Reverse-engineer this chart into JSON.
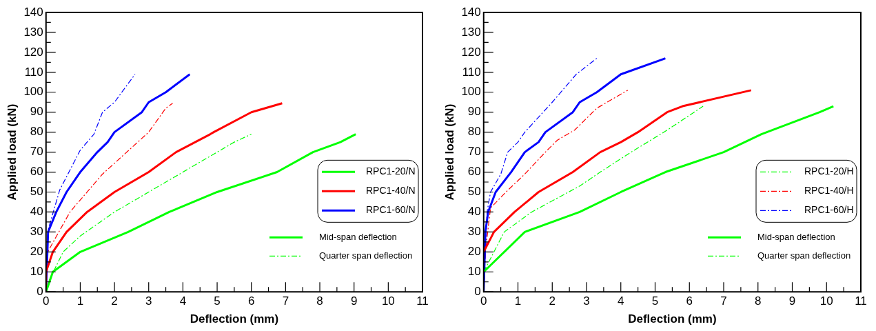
{
  "chart_data": [
    {
      "type": "line",
      "xlabel": "Deflection (mm)",
      "ylabel": "Applied load (kN)",
      "xlim": [
        0,
        11
      ],
      "xticks": [
        0,
        1,
        2,
        3,
        4,
        5,
        6,
        7,
        8,
        9,
        10,
        11
      ],
      "ylim": [
        0,
        140
      ],
      "yticks": [
        0,
        10,
        20,
        30,
        40,
        50,
        60,
        70,
        80,
        90,
        100,
        110,
        120,
        130,
        140
      ],
      "legend": "right",
      "annotations": [
        "Mid-span deflection",
        "Quarter span deflection"
      ],
      "series": [
        {
          "name": "RPC1-20/N",
          "color": "#00ff00",
          "line_style": "solid",
          "x": [
            0,
            0.2,
            1,
            2.4,
            3.6,
            5,
            6.75,
            7.8,
            8.6,
            9.05
          ],
          "values": [
            0,
            10,
            20,
            30,
            40,
            50,
            60,
            70,
            75,
            79
          ]
        },
        {
          "name": "RPC1-40/N",
          "color": "#ff0000",
          "line_style": "solid",
          "x": [
            0,
            0,
            0.2,
            0.6,
            1.2,
            2,
            3,
            3.8,
            4.8,
            4.9,
            6,
            6.9
          ],
          "values": [
            0,
            10,
            20,
            30,
            40,
            50,
            60,
            70,
            79,
            80,
            90,
            94.5
          ]
        },
        {
          "name": "RPC1-60/N",
          "color": "#0000ff",
          "line_style": "solid",
          "x": [
            0,
            0.06,
            0.3,
            0.6,
            1,
            1.5,
            1.8,
            2,
            2.8,
            3,
            3.5,
            4.2
          ],
          "values": [
            0,
            30,
            40,
            50,
            60,
            70,
            75,
            80,
            90,
            95,
            100,
            109
          ]
        },
        {
          "color": "#00ff00",
          "line_style": "dashed",
          "x": [
            0,
            0.1,
            0.5,
            1,
            2,
            3,
            4,
            5,
            5.5,
            6
          ],
          "values": [
            0,
            6,
            20,
            28,
            40,
            50,
            60,
            70,
            75,
            79
          ]
        },
        {
          "color": "#ff0000",
          "line_style": "dashed",
          "x": [
            0,
            0.05,
            0.7,
            1.65,
            3,
            3.5,
            3.7
          ],
          "values": [
            0,
            20,
            40,
            59,
            80,
            92,
            94.5
          ]
        },
        {
          "color": "#0000ff",
          "line_style": "dashed",
          "x": [
            0,
            0.06,
            0.4,
            1,
            1.4,
            1.65,
            2,
            2.6
          ],
          "values": [
            0,
            31,
            51,
            71,
            79,
            90,
            95,
            109
          ]
        }
      ]
    },
    {
      "type": "line",
      "xlabel": "Deflection (mm)",
      "ylabel": "Applied load (kN)",
      "xlim": [
        0,
        11
      ],
      "xticks": [
        0,
        1,
        2,
        3,
        4,
        5,
        6,
        7,
        8,
        9,
        10,
        11
      ],
      "ylim": [
        0,
        140
      ],
      "yticks": [
        0,
        10,
        20,
        30,
        40,
        50,
        60,
        70,
        80,
        90,
        100,
        110,
        120,
        130,
        140
      ],
      "legend": "right",
      "annotations": [
        "Mid-span deflection",
        "Quarter span deflection"
      ],
      "series": [
        {
          "color": "#00ff00",
          "line_style": "solid",
          "x": [
            0,
            1.2,
            2.8,
            4,
            5.3,
            7,
            8.1,
            9.8,
            10.2
          ],
          "values": [
            10,
            30,
            40,
            50,
            60,
            70,
            79,
            90,
            93
          ]
        },
        {
          "color": "#ff0000",
          "line_style": "solid",
          "x": [
            0,
            0.3,
            0.9,
            1.6,
            2.6,
            3.4,
            4,
            4.5,
            5.35,
            5.8,
            7.8
          ],
          "values": [
            20,
            30,
            40,
            50,
            60,
            70,
            75,
            80,
            90,
            93,
            101
          ]
        },
        {
          "color": "#0000ff",
          "line_style": "solid",
          "x": [
            0,
            0.05,
            0.13,
            0.35,
            0.8,
            1.2,
            1.6,
            1.8,
            2.6,
            2.8,
            3.3,
            4,
            5.3
          ],
          "values": [
            0,
            30,
            40,
            50,
            60,
            70,
            75,
            80,
            90,
            95,
            100,
            109,
            117
          ]
        },
        {
          "name": "RPC1-20/H",
          "color": "#00ff00",
          "line_style": "dashed",
          "x": [
            0,
            0.6,
            1.4,
            2.8,
            3.4,
            4.3,
            5.35,
            6.4
          ],
          "values": [
            10,
            30,
            40,
            53,
            60,
            70,
            81,
            93
          ]
        },
        {
          "name": "RPC1-40/H",
          "color": "#ff0000",
          "line_style": "dashed",
          "x": [
            0,
            0.05,
            0.2,
            0.65,
            1.2,
            1.8,
            2.15,
            2.65,
            3.3,
            4.2
          ],
          "values": [
            0,
            20,
            42,
            50,
            59,
            70,
            76,
            81,
            92,
            101
          ]
        },
        {
          "name": "RPC1-60/H",
          "color": "#0000ff",
          "line_style": "dashed",
          "x": [
            0,
            0.1,
            0.2,
            0.5,
            0.7,
            1,
            1.2,
            2,
            2.7,
            3.3
          ],
          "values": [
            0,
            40,
            50,
            59,
            70,
            75,
            80,
            95,
            109,
            117
          ]
        }
      ]
    }
  ]
}
